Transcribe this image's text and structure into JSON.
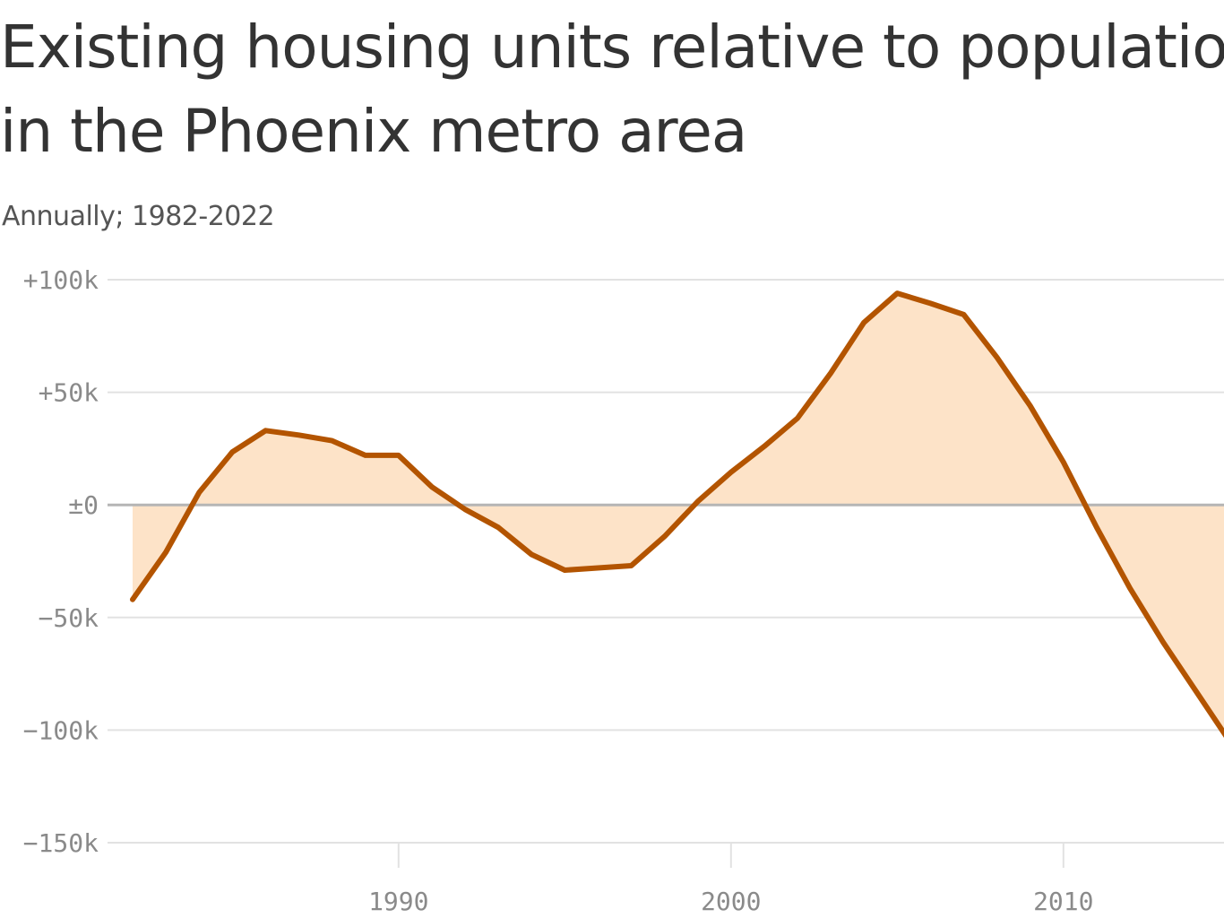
{
  "chart_data": {
    "type": "area",
    "title_lines": [
      "Existing housing units relative to population",
      "in the Phoenix metro area"
    ],
    "subtitle": "Annually; 1982-2022",
    "xlabel": "",
    "ylabel": "",
    "xlim": [
      1982,
      2022
    ],
    "ylim": [
      -150000,
      100000
    ],
    "x_ticks": [
      1990,
      2000,
      2010
    ],
    "y_ticks": [
      {
        "value": 100000,
        "label": "+100k"
      },
      {
        "value": 50000,
        "label": "+50k"
      },
      {
        "value": 0,
        "label": "±0"
      },
      {
        "value": -50000,
        "label": "−50k"
      },
      {
        "value": -100000,
        "label": "−100k"
      },
      {
        "value": -150000,
        "label": "−150k"
      }
    ],
    "grid": true,
    "colors": {
      "line": "#b35400",
      "fill": "#fde3c8",
      "zero": "#b5b5b5",
      "grid": "#e2e2e2"
    },
    "series": [
      {
        "x": [
          1982,
          1983,
          1984,
          1985,
          1986,
          1987,
          1988,
          1989,
          1990,
          1991,
          1992,
          1993,
          1994,
          1995,
          1996,
          1997,
          1998,
          1999,
          2000,
          2001,
          2002,
          2003,
          2004,
          2005,
          2006,
          2007,
          2008,
          2009,
          2010,
          2011,
          2012,
          2013,
          2014,
          2015
        ],
        "y": [
          -42000,
          -21000,
          5500,
          23500,
          33000,
          31000,
          28500,
          22000,
          22000,
          8000,
          -2000,
          -10000,
          -22000,
          -29000,
          -28000,
          -27000,
          -14000,
          1500,
          14500,
          26000,
          38500,
          58500,
          81000,
          94000,
          89500,
          84500,
          65500,
          44000,
          19000,
          -10000,
          -37000,
          -61000,
          -83000,
          -105000
        ]
      }
    ]
  }
}
